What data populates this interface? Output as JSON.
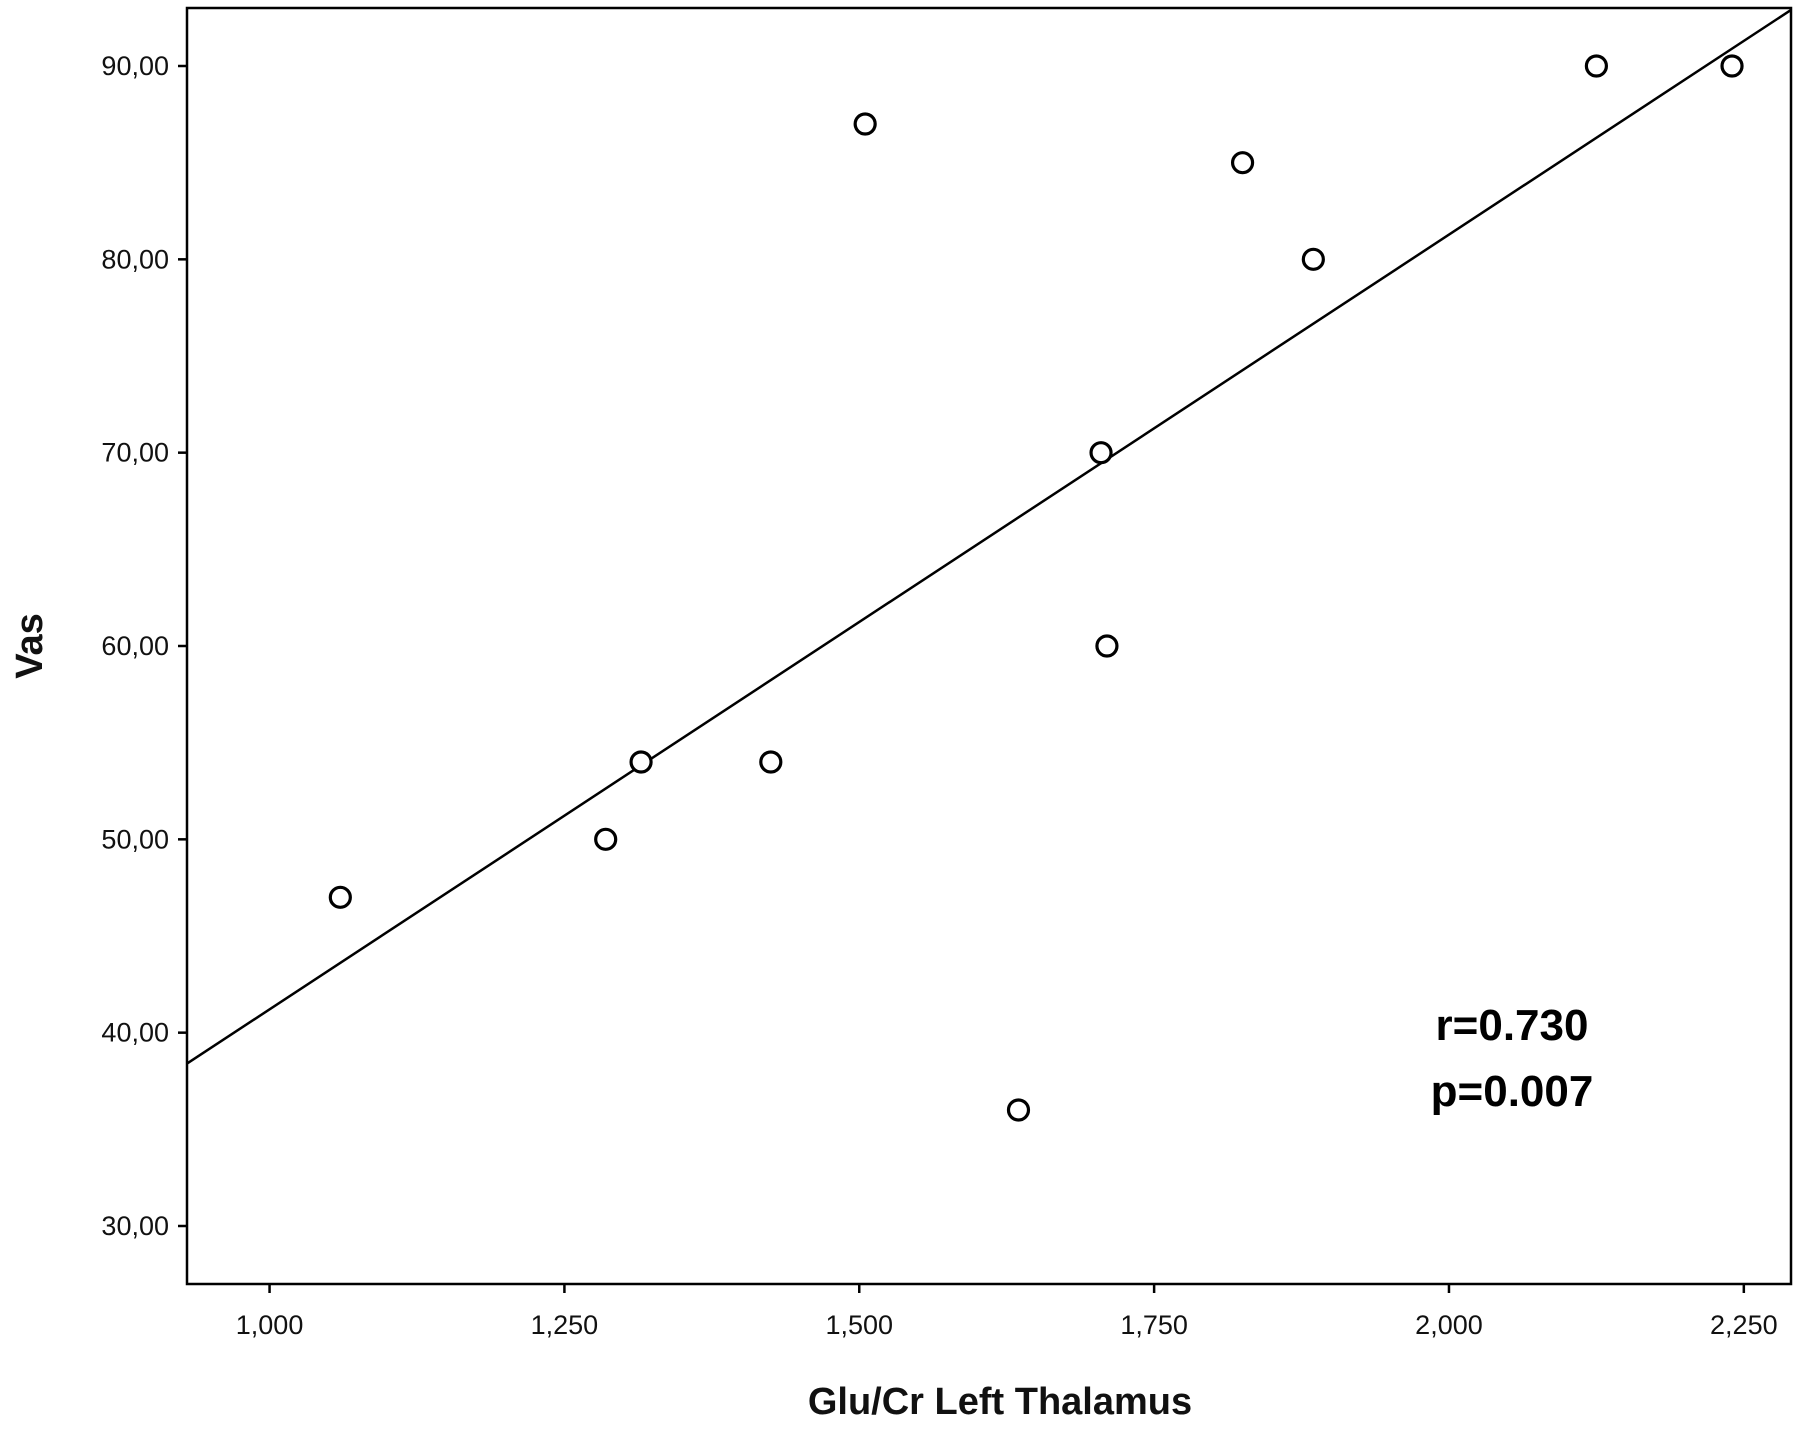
{
  "chart_data": {
    "type": "scatter",
    "title": "",
    "xlabel": "Glu/Cr Left Thalamus",
    "ylabel": "Vas",
    "xlim": [
      0.93,
      2.29
    ],
    "ylim": [
      27.0,
      93.0
    ],
    "x_ticks": [
      1.0,
      1.25,
      1.5,
      1.75,
      2.0,
      2.25
    ],
    "x_tick_labels": [
      "1,000",
      "1,250",
      "1,500",
      "1,750",
      "2,000",
      "2,250"
    ],
    "y_ticks": [
      30,
      40,
      50,
      60,
      70,
      80,
      90
    ],
    "y_tick_labels": [
      "30,00",
      "40,00",
      "50,00",
      "60,00",
      "70,00",
      "80,00",
      "90,00"
    ],
    "grid": false,
    "series": [
      {
        "points": [
          {
            "x": 1.06,
            "y": 47
          },
          {
            "x": 1.285,
            "y": 50
          },
          {
            "x": 1.315,
            "y": 54
          },
          {
            "x": 1.425,
            "y": 54
          },
          {
            "x": 1.505,
            "y": 87
          },
          {
            "x": 1.635,
            "y": 36
          },
          {
            "x": 1.705,
            "y": 70
          },
          {
            "x": 1.71,
            "y": 60
          },
          {
            "x": 1.825,
            "y": 85
          },
          {
            "x": 1.885,
            "y": 80
          },
          {
            "x": 2.125,
            "y": 90
          },
          {
            "x": 2.24,
            "y": 90
          }
        ]
      }
    ],
    "fit_line": {
      "x": [
        0.93,
        2.29
      ],
      "y": [
        38.4,
        92.9
      ]
    },
    "annotations": [
      "r=0.730",
      "p=0.007"
    ]
  }
}
